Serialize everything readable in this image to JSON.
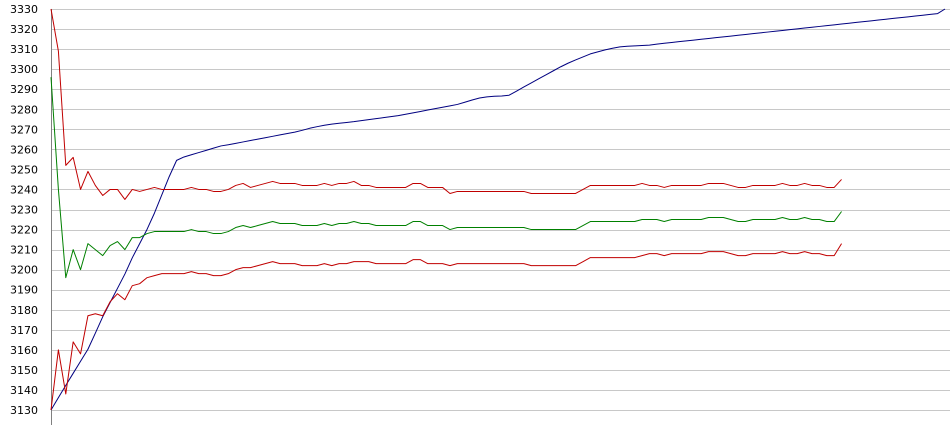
{
  "chart_data": {
    "type": "line",
    "ylim": [
      3130,
      3330
    ],
    "yticks": [
      3130,
      3140,
      3150,
      3160,
      3170,
      3180,
      3190,
      3200,
      3210,
      3220,
      3230,
      3240,
      3250,
      3260,
      3270,
      3280,
      3290,
      3300,
      3310,
      3320,
      3330
    ],
    "grid": true,
    "x_count": 122,
    "series": [
      {
        "color": "#000080",
        "values": [
          3130.0,
          3136.2,
          3142.3,
          3148.3,
          3154.3,
          3160.3,
          3168.3,
          3176.5,
          3183.6,
          3190.7,
          3197.8,
          3205.9,
          3213.0,
          3220.1,
          3228.2,
          3237.3,
          3246.4,
          3254.5,
          3256.2,
          3257.3,
          3258.4,
          3259.5,
          3260.6,
          3261.7,
          3262.3,
          3263.0,
          3263.7,
          3264.4,
          3265.1,
          3265.8,
          3266.5,
          3267.2,
          3267.9,
          3268.6,
          3269.5,
          3270.5,
          3271.3,
          3272.0,
          3272.6,
          3273.0,
          3273.4,
          3273.8,
          3274.3,
          3274.8,
          3275.3,
          3275.8,
          3276.3,
          3276.8,
          3277.5,
          3278.2,
          3278.9,
          3279.6,
          3280.3,
          3281.0,
          3281.7,
          3282.4,
          3283.5,
          3284.6,
          3285.6,
          3286.2,
          3286.5,
          3286.6,
          3287.0,
          3289.0,
          3291.1,
          3293.1,
          3295.2,
          3297.2,
          3299.2,
          3301.2,
          3303.0,
          3304.6,
          3306.1,
          3307.6,
          3308.6,
          3309.6,
          3310.4,
          3311.1,
          3311.4,
          3311.6,
          3311.8,
          3312.0,
          3312.5,
          3312.9,
          3313.3,
          3313.7,
          3314.1,
          3314.5,
          3314.9,
          3315.3,
          3315.7,
          3316.1,
          3316.5,
          3316.9,
          3317.3,
          3317.7,
          3318.1,
          3318.5,
          3318.9,
          3319.3,
          3319.7,
          3320.1,
          3320.5,
          3320.9,
          3321.3,
          3321.7,
          3322.1,
          3322.5,
          3322.9,
          3323.3,
          3323.7,
          3324.1,
          3324.5,
          3324.9,
          3325.3,
          3325.7,
          3326.1,
          3326.5,
          3326.9,
          3327.3,
          3327.7,
          3330.0
        ]
      },
      {
        "color": "#008000",
        "values": [
          3296.0,
          3240.0,
          3196.0,
          3210.0,
          3200.0,
          3213.0,
          3210.0,
          3207.0,
          3212.0,
          3214.0,
          3210.0,
          3216.0,
          3216.0,
          3218.0,
          3219.0,
          3219.0,
          3219.0,
          3219.0,
          3219.0,
          3220.0,
          3219.0,
          3219.0,
          3218.0,
          3218.0,
          3219.0,
          3221.0,
          3222.0,
          3221.0,
          3222.0,
          3223.0,
          3224.0,
          3223.0,
          3223.0,
          3223.0,
          3222.0,
          3222.0,
          3222.0,
          3223.0,
          3222.0,
          3223.0,
          3223.0,
          3224.0,
          3223.0,
          3223.0,
          3222.0,
          3222.0,
          3222.0,
          3222.0,
          3222.0,
          3224.0,
          3224.0,
          3222.0,
          3222.0,
          3222.0,
          3220.0,
          3221.0,
          3221.0,
          3221.0,
          3221.0,
          3221.0,
          3221.0,
          3221.0,
          3221.0,
          3221.0,
          3221.0,
          3220.0,
          3220.0,
          3220.0,
          3220.0,
          3220.0,
          3220.0,
          3220.0,
          3222.0,
          3224.0,
          3224.0,
          3224.0,
          3224.0,
          3224.0,
          3224.0,
          3224.0,
          3225.0,
          3225.0,
          3225.0,
          3224.0,
          3225.0,
          3225.0,
          3225.0,
          3225.0,
          3225.0,
          3226.0,
          3226.0,
          3226.0,
          3225.0,
          3224.0,
          3224.0,
          3225.0,
          3225.0,
          3225.0,
          3225.0,
          3226.0,
          3225.0,
          3225.0,
          3226.0,
          3225.0,
          3225.0,
          3224.0,
          3224.0,
          3229.0
        ]
      },
      {
        "color": "#c00000",
        "values": [
          3330.0,
          3309.0,
          3252.0,
          3256.0,
          3240.0,
          3249.0,
          3242.0,
          3237.0,
          3240.0,
          3240.0,
          3235.0,
          3240.0,
          3239.0,
          3240.0,
          3241.0,
          3240.0,
          3240.0,
          3240.0,
          3240.0,
          3241.0,
          3240.0,
          3240.0,
          3239.0,
          3239.0,
          3240.0,
          3242.0,
          3243.0,
          3241.0,
          3242.0,
          3243.0,
          3244.0,
          3243.0,
          3243.0,
          3243.0,
          3242.0,
          3242.0,
          3242.0,
          3243.0,
          3242.0,
          3243.0,
          3243.0,
          3244.0,
          3242.0,
          3242.0,
          3241.0,
          3241.0,
          3241.0,
          3241.0,
          3241.0,
          3243.0,
          3243.0,
          3241.0,
          3241.0,
          3241.0,
          3238.0,
          3239.0,
          3239.0,
          3239.0,
          3239.0,
          3239.0,
          3239.0,
          3239.0,
          3239.0,
          3239.0,
          3239.0,
          3238.0,
          3238.0,
          3238.0,
          3238.0,
          3238.0,
          3238.0,
          3238.0,
          3240.0,
          3242.0,
          3242.0,
          3242.0,
          3242.0,
          3242.0,
          3242.0,
          3242.0,
          3243.0,
          3242.0,
          3242.0,
          3241.0,
          3242.0,
          3242.0,
          3242.0,
          3242.0,
          3242.0,
          3243.0,
          3243.0,
          3243.0,
          3242.0,
          3241.0,
          3241.0,
          3242.0,
          3242.0,
          3242.0,
          3242.0,
          3243.0,
          3242.0,
          3242.0,
          3243.0,
          3242.0,
          3242.0,
          3241.0,
          3241.0,
          3245.0
        ]
      },
      {
        "color": "#c00000",
        "values": [
          3130.0,
          3160.0,
          3138.0,
          3164.0,
          3158.0,
          3177.0,
          3178.0,
          3177.0,
          3184.0,
          3188.0,
          3185.0,
          3192.0,
          3193.0,
          3196.0,
          3197.0,
          3198.0,
          3198.0,
          3198.0,
          3198.0,
          3199.0,
          3198.0,
          3198.0,
          3197.0,
          3197.0,
          3198.0,
          3200.0,
          3201.0,
          3201.0,
          3202.0,
          3203.0,
          3204.0,
          3203.0,
          3203.0,
          3203.0,
          3202.0,
          3202.0,
          3202.0,
          3203.0,
          3202.0,
          3203.0,
          3203.0,
          3204.0,
          3204.0,
          3204.0,
          3203.0,
          3203.0,
          3203.0,
          3203.0,
          3203.0,
          3205.0,
          3205.0,
          3203.0,
          3203.0,
          3203.0,
          3202.0,
          3203.0,
          3203.0,
          3203.0,
          3203.0,
          3203.0,
          3203.0,
          3203.0,
          3203.0,
          3203.0,
          3203.0,
          3202.0,
          3202.0,
          3202.0,
          3202.0,
          3202.0,
          3202.0,
          3202.0,
          3204.0,
          3206.0,
          3206.0,
          3206.0,
          3206.0,
          3206.0,
          3206.0,
          3206.0,
          3207.0,
          3208.0,
          3208.0,
          3207.0,
          3208.0,
          3208.0,
          3208.0,
          3208.0,
          3208.0,
          3209.0,
          3209.0,
          3209.0,
          3208.0,
          3207.0,
          3207.0,
          3208.0,
          3208.0,
          3208.0,
          3208.0,
          3209.0,
          3208.0,
          3208.0,
          3209.0,
          3208.0,
          3208.0,
          3207.0,
          3207.0,
          3213.0
        ]
      }
    ]
  }
}
